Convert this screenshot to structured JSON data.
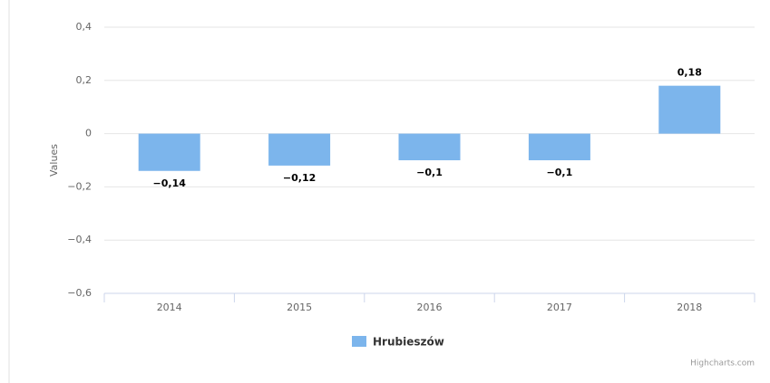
{
  "chart_data": {
    "type": "bar",
    "y_axis_label": "Values",
    "categories": [
      "2014",
      "2015",
      "2016",
      "2017",
      "2018"
    ],
    "series": [
      {
        "name": "Hrubieszów",
        "color": "#7cb5ec",
        "values": [
          -0.14,
          -0.12,
          -0.1,
          -0.1,
          0.18
        ],
        "value_labels": [
          "−0,14",
          "−0,12",
          "−0,1",
          "−0,1",
          "0,18"
        ]
      }
    ],
    "ylim": [
      -0.6,
      0.4
    ],
    "yticks": [
      {
        "value": 0.4,
        "label": "0,4"
      },
      {
        "value": 0.2,
        "label": "0,2"
      },
      0,
      {
        "value": -0.2,
        "label": "−0,2"
      },
      {
        "value": -0.4,
        "label": "−0,4"
      },
      {
        "value": -0.6,
        "label": "−0,6"
      }
    ],
    "grid": true,
    "legend": "bottom",
    "credits": "Highcharts.com"
  }
}
